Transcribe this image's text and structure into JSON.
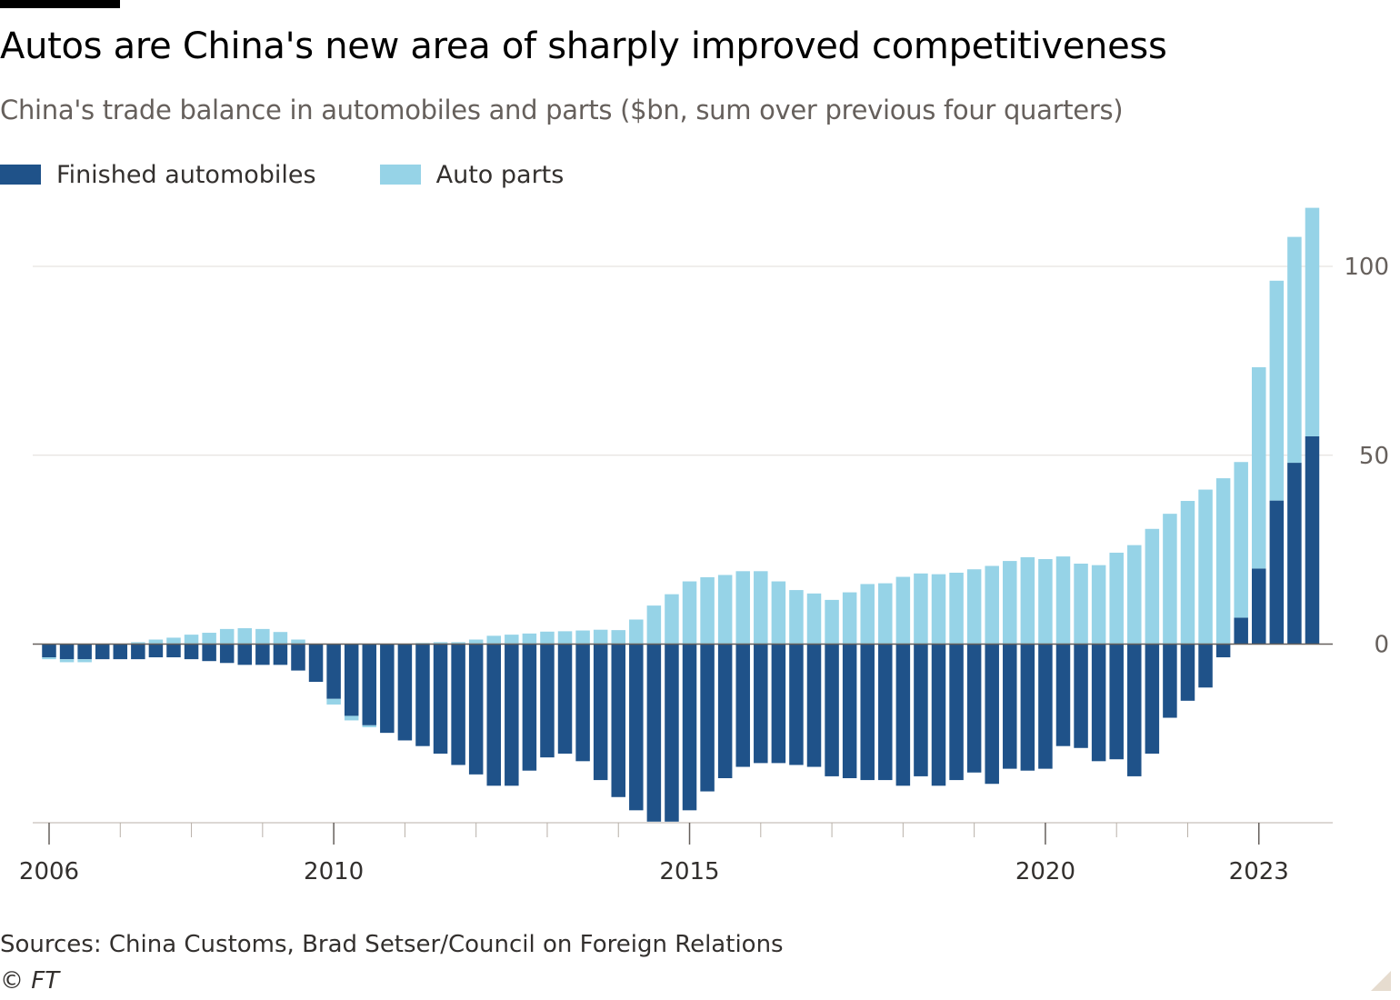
{
  "title": "Autos are China's new area of sharply improved competitiveness",
  "subtitle": "China's trade balance in automobiles and parts ($bn, sum over previous four quarters)",
  "legend": [
    {
      "label": "Finished automobiles",
      "color": "#1f5289"
    },
    {
      "label": "Auto parts",
      "color": "#96d3e7"
    }
  ],
  "source": "Sources: China Customs, Brad Setser/Council on Foreign Relations",
  "credit": "© FT",
  "chart_data": {
    "type": "bar",
    "stacked": true,
    "title": "Autos are China's new area of sharply improved competitiveness",
    "subtitle": "China's trade balance in automobiles and parts ($bn, sum over previous four quarters)",
    "ylim": [
      -47.5,
      116
    ],
    "yticks": [
      0,
      50,
      100
    ],
    "y_axis_side": "right",
    "xticks": [
      "2006",
      "2010",
      "2015",
      "2020",
      "2023"
    ],
    "grid": true,
    "legend_position": "top-left",
    "categories": [
      "2006 Q1",
      "2006 Q2",
      "2006 Q3",
      "2006 Q4",
      "2007 Q1",
      "2007 Q2",
      "2007 Q3",
      "2007 Q4",
      "2008 Q1",
      "2008 Q2",
      "2008 Q3",
      "2008 Q4",
      "2009 Q1",
      "2009 Q2",
      "2009 Q3",
      "2009 Q4",
      "2010 Q1",
      "2010 Q2",
      "2010 Q3",
      "2010 Q4",
      "2011 Q1",
      "2011 Q2",
      "2011 Q3",
      "2011 Q4",
      "2012 Q1",
      "2012 Q2",
      "2012 Q3",
      "2012 Q4",
      "2013 Q1",
      "2013 Q2",
      "2013 Q3",
      "2013 Q4",
      "2014 Q1",
      "2014 Q2",
      "2014 Q3",
      "2014 Q4",
      "2015 Q1",
      "2015 Q2",
      "2015 Q3",
      "2015 Q4",
      "2016 Q1",
      "2016 Q2",
      "2016 Q3",
      "2016 Q4",
      "2017 Q1",
      "2017 Q2",
      "2017 Q3",
      "2017 Q4",
      "2018 Q1",
      "2018 Q2",
      "2018 Q3",
      "2018 Q4",
      "2019 Q1",
      "2019 Q2",
      "2019 Q3",
      "2019 Q4",
      "2020 Q1",
      "2020 Q2",
      "2020 Q3",
      "2020 Q4",
      "2021 Q1",
      "2021 Q2",
      "2021 Q3",
      "2021 Q4",
      "2022 Q1",
      "2022 Q2",
      "2022 Q3",
      "2022 Q4",
      "2023 Q1",
      "2023 Q2",
      "2023 Q3",
      "2023 Q4"
    ],
    "series": [
      {
        "name": "Finished automobiles",
        "color": "#1f5289",
        "values": [
          -3.5,
          -4,
          -4,
          -4,
          -4,
          -4,
          -3.5,
          -3.5,
          -4,
          -4.5,
          -5,
          -5.5,
          -5.5,
          -5.5,
          -7,
          -10,
          -14.5,
          -19,
          -21.5,
          -23.5,
          -25.5,
          -27,
          -29,
          -32,
          -34.5,
          -37.5,
          -37.5,
          -33.5,
          -30,
          -29,
          -31,
          -36,
          -40.5,
          -44,
          -47,
          -47,
          -44,
          -39,
          -35.5,
          -32.5,
          -31.5,
          -31.5,
          -32,
          -32.5,
          -35,
          -35.5,
          -36,
          -36,
          -37.5,
          -35,
          -37.5,
          -36,
          -34,
          -37,
          -33,
          -33.5,
          -33,
          -27,
          -27.5,
          -31,
          -30.5,
          -35,
          -29,
          -19.5,
          -15,
          -11.5,
          -3.5,
          7,
          20,
          38,
          48,
          55
        ]
      },
      {
        "name": "Auto parts",
        "color": "#96d3e7",
        "values": [
          -0.5,
          -0.8,
          -0.8,
          0,
          0,
          0.5,
          1.2,
          1.7,
          2.5,
          3,
          4,
          4.2,
          4,
          3.2,
          1.2,
          0,
          -1.5,
          -1.2,
          -0.5,
          0,
          0,
          0.3,
          0.5,
          0.5,
          1.2,
          2.2,
          2.5,
          2.8,
          3.3,
          3.4,
          3.6,
          3.8,
          3.7,
          6.5,
          10.2,
          13.2,
          16.6,
          17.7,
          18.3,
          19.3,
          19.3,
          16.6,
          14.3,
          13.4,
          11.7,
          13.7,
          15.9,
          16.1,
          17.8,
          18.7,
          18.5,
          18.9,
          19.8,
          20.7,
          22,
          23,
          22.5,
          23.2,
          21.3,
          20.9,
          24.2,
          26.2,
          30.5,
          34.5,
          37.9,
          40.9,
          43.9,
          41.2,
          53.3,
          58.2,
          59.8,
          60.5
        ]
      }
    ]
  }
}
